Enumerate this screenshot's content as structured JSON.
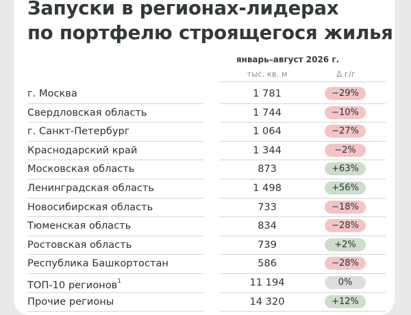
{
  "title": {
    "line1": "Запуски в регионах-лидерах",
    "line2": "по портфелю строящегося жилья"
  },
  "table": {
    "period": "январь–август 2026 г.",
    "units_header": "тыс. кв. м",
    "delta_header": "Δ г/г",
    "rows": [
      {
        "region": "г. Москва",
        "value": "1 781",
        "delta": "−29%",
        "sign": "neg"
      },
      {
        "region": "Свердловская область",
        "value": "1 744",
        "delta": "−10%",
        "sign": "neg"
      },
      {
        "region": "г. Санкт-Петербург",
        "value": "1 064",
        "delta": "−27%",
        "sign": "neg"
      },
      {
        "region": "Краснодарский край",
        "value": "1 344",
        "delta": "−2%",
        "sign": "neg"
      },
      {
        "region": "Московская область",
        "value": "873",
        "delta": "+63%",
        "sign": "pos"
      },
      {
        "region": "Ленинградская область",
        "value": "1 498",
        "delta": "+56%",
        "sign": "pos"
      },
      {
        "region": "Новосибирская область",
        "value": "733",
        "delta": "−18%",
        "sign": "neg"
      },
      {
        "region": "Тюменская область",
        "value": "834",
        "delta": "−28%",
        "sign": "neg"
      },
      {
        "region": "Ростовская область",
        "value": "739",
        "delta": "+2%",
        "sign": "pos"
      },
      {
        "region": "Республика Башкортостан",
        "value": "586",
        "delta": "−28%",
        "sign": "neg"
      },
      {
        "region": "ТОП-10 регионов",
        "footnote": "1",
        "value": "11 194",
        "delta": "0%",
        "sign": "zero"
      },
      {
        "region": "Прочие регионы",
        "value": "14 320",
        "delta": "+12%",
        "sign": "pos"
      }
    ]
  }
}
